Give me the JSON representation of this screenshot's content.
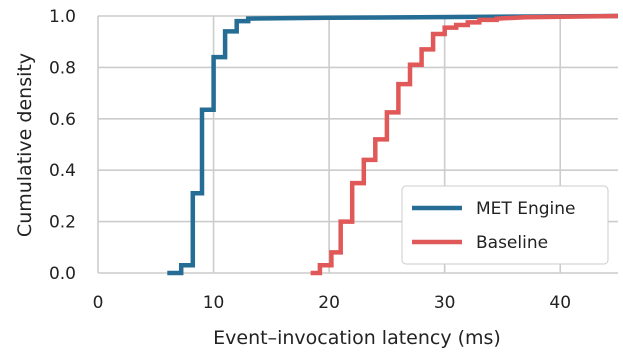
{
  "chart_data": {
    "type": "line",
    "xlabel": "Event–invocation latency (ms)",
    "ylabel": "Cumulative density",
    "xlim": [
      0,
      45
    ],
    "ylim": [
      0,
      1
    ],
    "xticks": [
      "0",
      "10",
      "20",
      "30",
      "40"
    ],
    "yticks": [
      "0.0",
      "0.2",
      "0.4",
      "0.6",
      "0.8",
      "1.0"
    ],
    "grid": true,
    "legend_position": "lower-right",
    "series": [
      {
        "name": "MET Engine",
        "color": "#256d94",
        "steps": [
          [
            6.0,
            0.0
          ],
          [
            7.2,
            0.0
          ],
          [
            7.2,
            0.03
          ],
          [
            8.2,
            0.03
          ],
          [
            8.2,
            0.31
          ],
          [
            9.0,
            0.31
          ],
          [
            9.0,
            0.635
          ],
          [
            10.0,
            0.635
          ],
          [
            10.0,
            0.84
          ],
          [
            11.0,
            0.84
          ],
          [
            11.0,
            0.94
          ],
          [
            12.0,
            0.94
          ],
          [
            12.0,
            0.98
          ],
          [
            13.0,
            0.98
          ],
          [
            13.0,
            0.99
          ],
          [
            20.0,
            0.993
          ],
          [
            45.0,
            1.0
          ]
        ]
      },
      {
        "name": "Baseline",
        "color": "#e05858",
        "steps": [
          [
            18.4,
            0.0
          ],
          [
            19.2,
            0.0
          ],
          [
            19.2,
            0.03
          ],
          [
            20.2,
            0.03
          ],
          [
            20.2,
            0.08
          ],
          [
            21.0,
            0.08
          ],
          [
            21.0,
            0.2
          ],
          [
            22.0,
            0.2
          ],
          [
            22.0,
            0.35
          ],
          [
            23.0,
            0.35
          ],
          [
            23.0,
            0.44
          ],
          [
            24.0,
            0.44
          ],
          [
            24.0,
            0.52
          ],
          [
            25.0,
            0.52
          ],
          [
            25.0,
            0.625
          ],
          [
            26.0,
            0.625
          ],
          [
            26.0,
            0.735
          ],
          [
            27.0,
            0.735
          ],
          [
            27.0,
            0.81
          ],
          [
            28.0,
            0.81
          ],
          [
            28.0,
            0.87
          ],
          [
            29.0,
            0.87
          ],
          [
            29.0,
            0.93
          ],
          [
            30.0,
            0.93
          ],
          [
            30.0,
            0.955
          ],
          [
            31.0,
            0.955
          ],
          [
            31.0,
            0.965
          ],
          [
            32.0,
            0.965
          ],
          [
            32.0,
            0.975
          ],
          [
            33.0,
            0.975
          ],
          [
            33.0,
            0.985
          ],
          [
            34.5,
            0.985
          ],
          [
            34.5,
            0.99
          ],
          [
            37.0,
            0.995
          ],
          [
            45.0,
            1.0
          ]
        ]
      }
    ]
  }
}
